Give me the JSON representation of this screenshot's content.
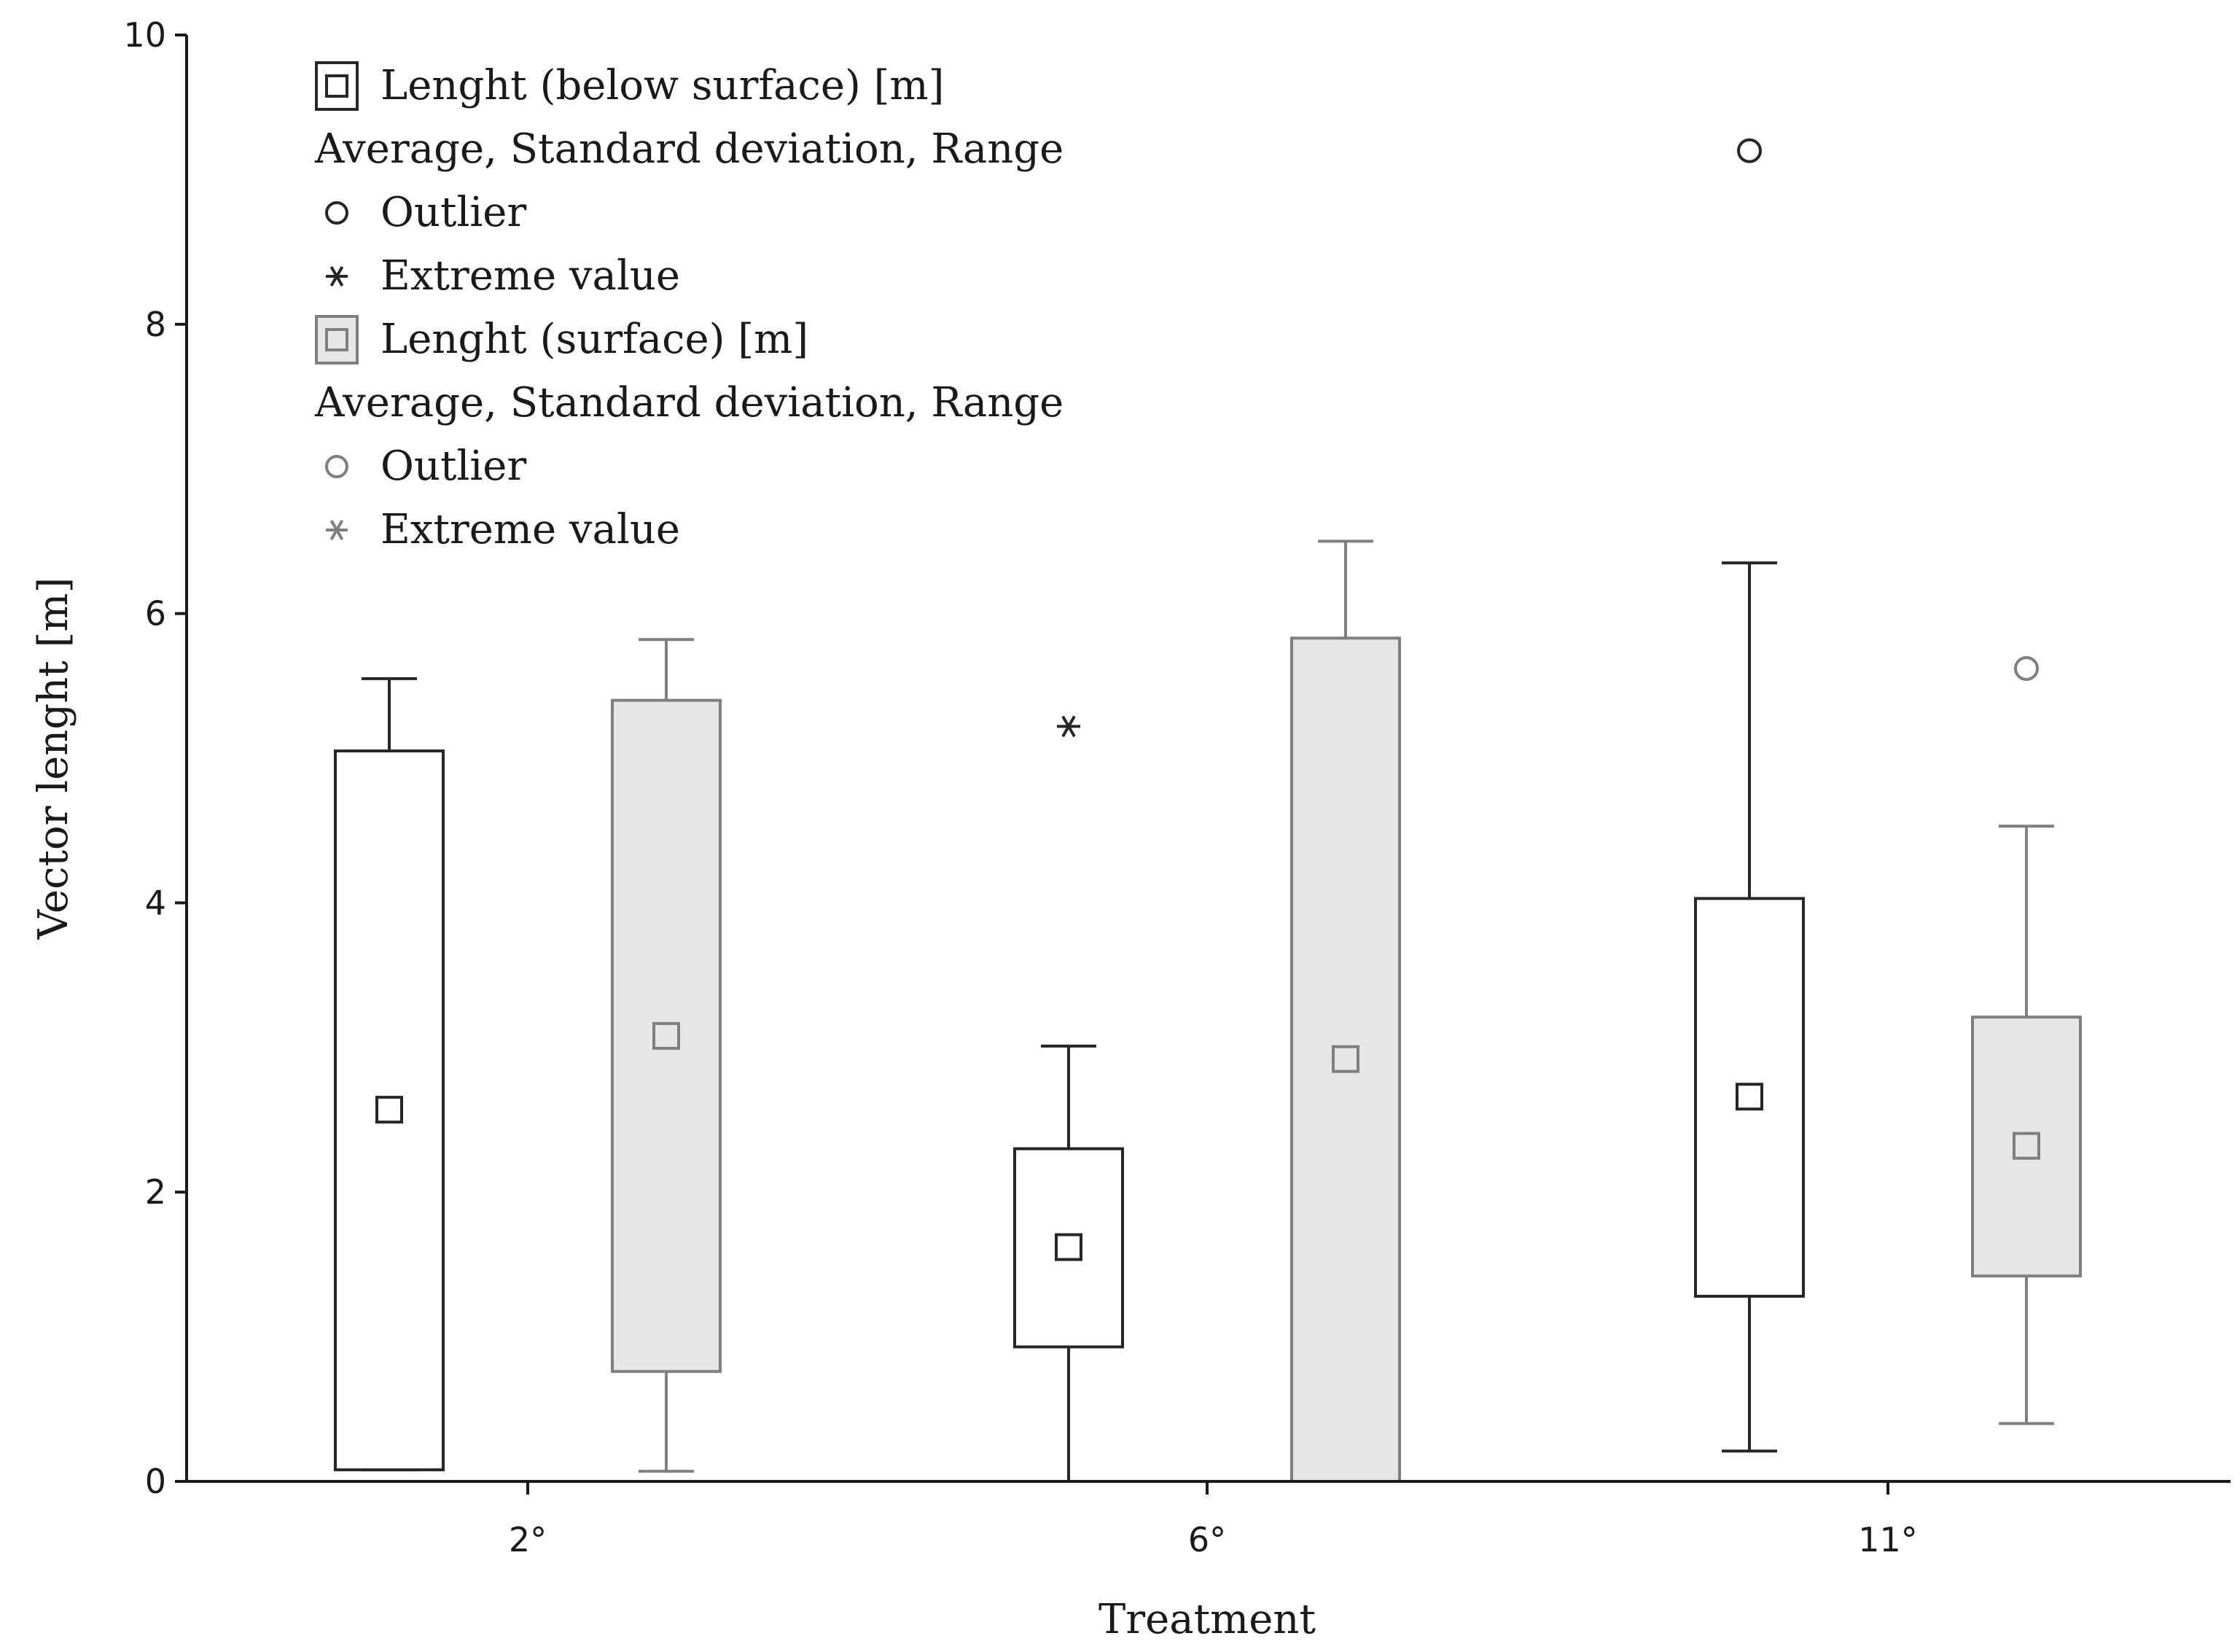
{
  "chart_data": {
    "type": "box",
    "xlabel": "Treatment",
    "ylabel": "Vector lenght [m]",
    "categories": [
      "2°",
      "6°",
      "11°"
    ],
    "ylim": [
      0,
      10
    ],
    "yticks": [
      "0",
      "2",
      "4",
      "6",
      "8",
      "10"
    ],
    "grid": false,
    "legend_position": "top-left",
    "series": [
      {
        "name": "Lenght (below surface) [m]",
        "color": "#262626",
        "fill": "#ffffff",
        "boxes": [
          {
            "category": "2°",
            "mean": 2.57,
            "box_low": 0.08,
            "box_high": 5.05,
            "whisker_low": 0.08,
            "whisker_high": 5.55
          },
          {
            "category": "6°",
            "mean": 1.62,
            "box_low": 0.93,
            "box_high": 2.3,
            "whisker_low": 0.0,
            "whisker_high": 3.01
          },
          {
            "category": "11°",
            "mean": 2.66,
            "box_low": 1.28,
            "box_high": 4.03,
            "whisker_low": 0.21,
            "whisker_high": 6.35
          }
        ],
        "outliers": [
          {
            "category": "11°",
            "value": 9.2
          }
        ],
        "extremes": [
          {
            "category": "6°",
            "value": 5.22
          }
        ]
      },
      {
        "name": "Lenght (surface) [m]",
        "color": "#7f7f7f",
        "fill": "#e6e6e6",
        "boxes": [
          {
            "category": "2°",
            "mean": 3.08,
            "box_low": 0.76,
            "box_high": 5.4,
            "whisker_low": 0.07,
            "whisker_high": 5.82
          },
          {
            "category": "6°",
            "mean": 2.92,
            "box_low": 0.0,
            "box_high": 5.83,
            "whisker_low": 0.0,
            "whisker_high": 6.5
          },
          {
            "category": "11°",
            "mean": 2.32,
            "box_low": 1.42,
            "box_high": 3.21,
            "whisker_low": 0.4,
            "whisker_high": 4.53
          }
        ],
        "outliers": [
          {
            "category": "11°",
            "value": 5.62
          }
        ],
        "extremes": []
      }
    ],
    "legend": [
      {
        "symbol": "box",
        "series": 0,
        "label": "Lenght (below surface) [m]"
      },
      {
        "symbol": "none",
        "series": 0,
        "label": "Average, Standard deviation, Range"
      },
      {
        "symbol": "circle",
        "series": 0,
        "label": "Outlier"
      },
      {
        "symbol": "star",
        "series": 0,
        "label": "Extreme value"
      },
      {
        "symbol": "box",
        "series": 1,
        "label": "Lenght (surface) [m]"
      },
      {
        "symbol": "none",
        "series": 1,
        "label": "Average, Standard deviation, Range"
      },
      {
        "symbol": "circle",
        "series": 1,
        "label": "Outlier"
      },
      {
        "symbol": "star",
        "series": 1,
        "label": "Extreme value"
      }
    ]
  }
}
